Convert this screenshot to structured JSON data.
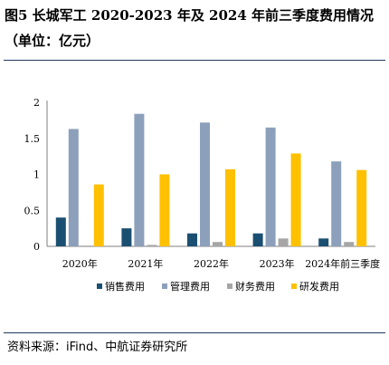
{
  "figure": {
    "title": "图5  长城军工 2020-2023 年及 2024 年前三季度费用情况（单位：亿元）",
    "source": "资料来源：iFind、中航证券研究所"
  },
  "chart_data": {
    "type": "bar",
    "categories": [
      "2020年",
      "2021年",
      "2022年",
      "2023年",
      "2024年前三季度"
    ],
    "series": [
      {
        "name": "销售费用",
        "color": "#1b4f72",
        "values": [
          0.4,
          0.25,
          0.18,
          0.18,
          0.11
        ]
      },
      {
        "name": "管理费用",
        "color": "#8da0bb",
        "values": [
          1.63,
          1.84,
          1.72,
          1.65,
          1.18
        ]
      },
      {
        "name": "财务费用",
        "color": "#a6a6a6",
        "values": [
          0.01,
          0.02,
          0.06,
          0.11,
          0.06
        ]
      },
      {
        "name": "研发费用",
        "color": "#ffc000",
        "values": [
          0.86,
          1.0,
          1.07,
          1.29,
          1.06
        ]
      }
    ],
    "ylim": [
      0,
      2
    ],
    "yticks": [
      "0",
      "0.5",
      "1",
      "1.5",
      "2"
    ],
    "grid": false,
    "legend": "bottom"
  }
}
